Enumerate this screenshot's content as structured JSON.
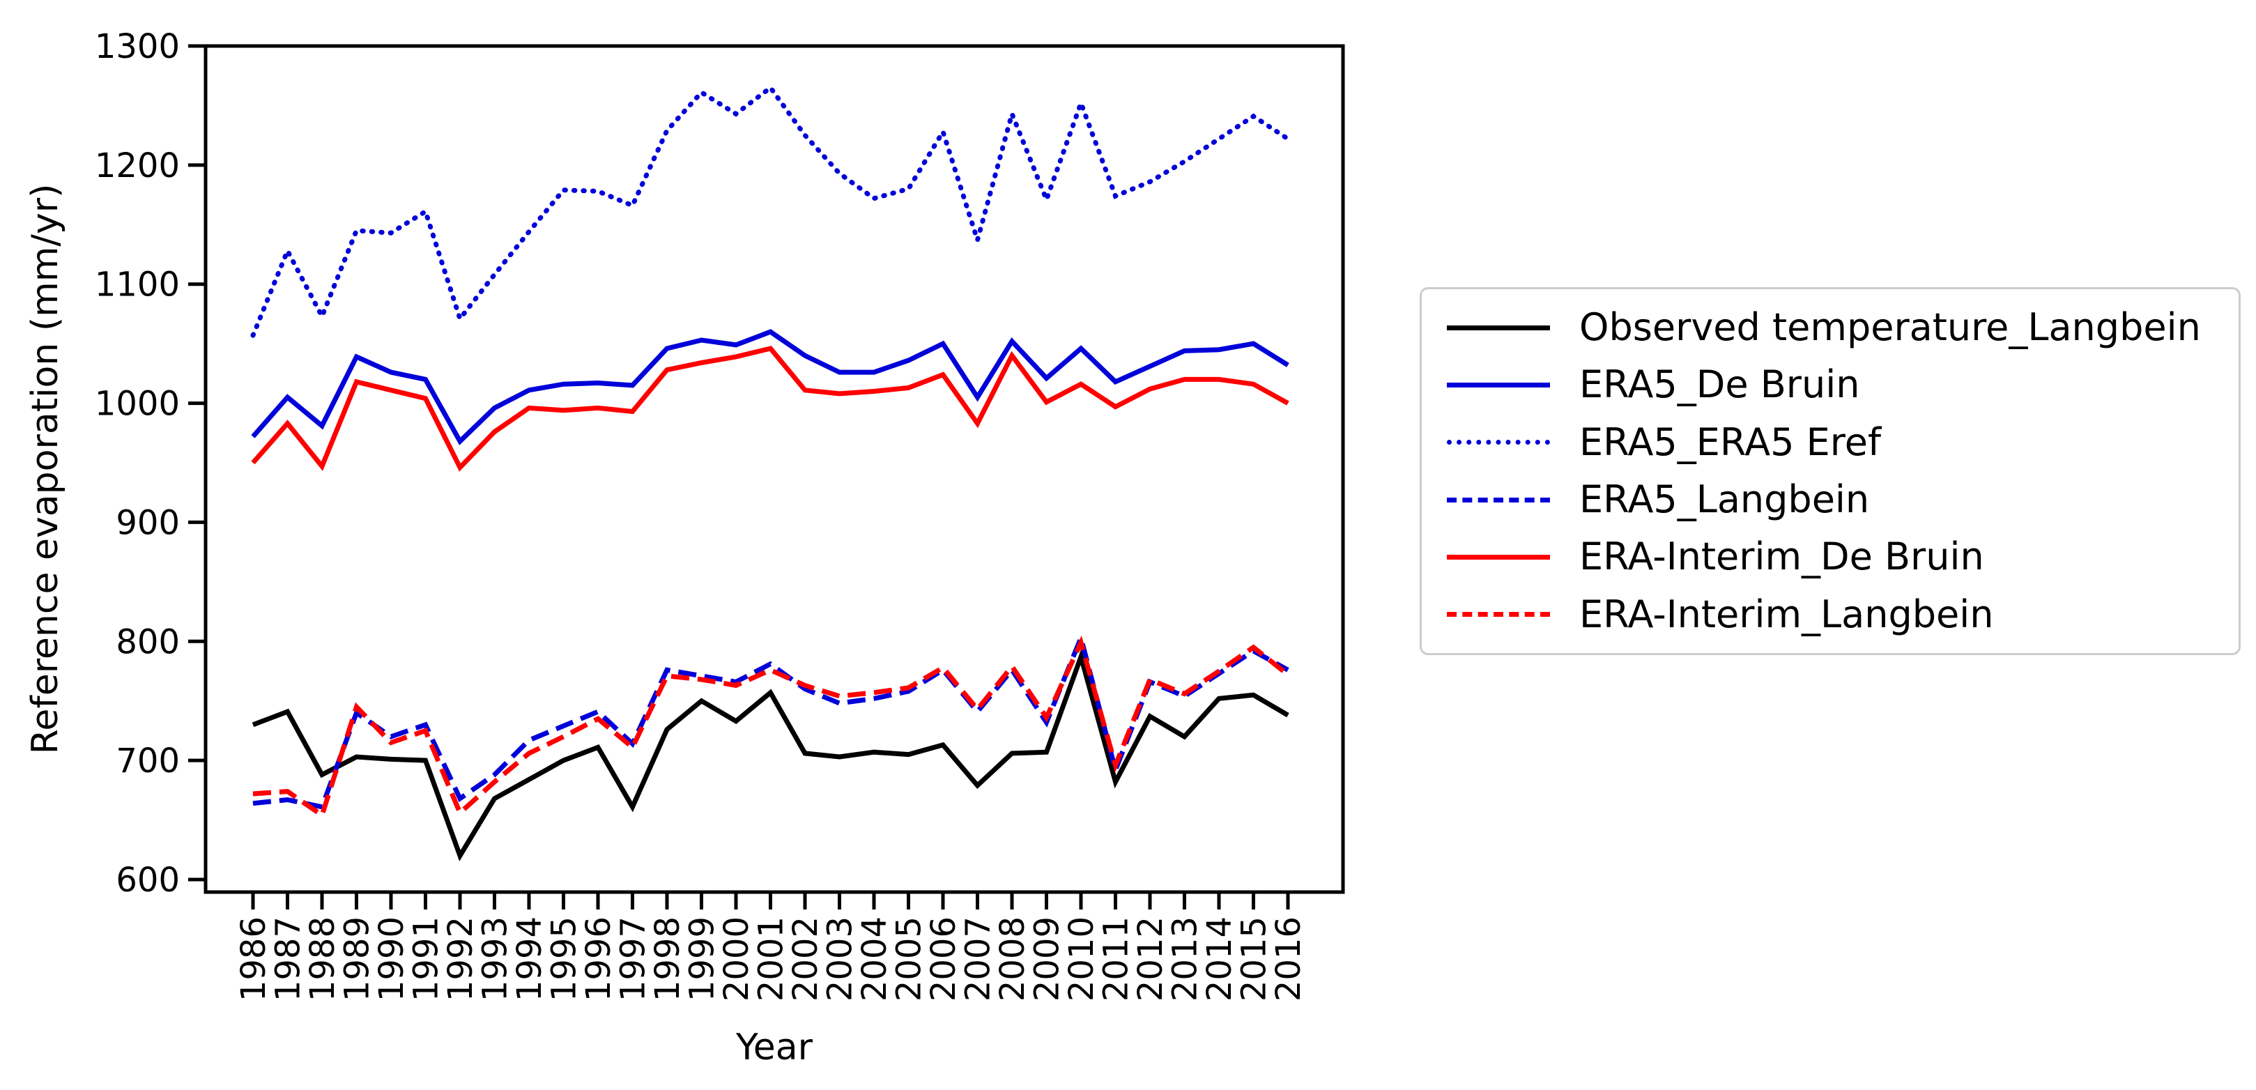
{
  "figure": {
    "background_color": "#ffffff",
    "frame_color": "#000000"
  },
  "axes": {
    "ylabel": "Reference evaporation (mm/yr)",
    "xlabel": "Year",
    "y_ticks": [
      600,
      700,
      800,
      900,
      1000,
      1100,
      1200,
      1300
    ],
    "x_ticks": [
      1986,
      1987,
      1988,
      1989,
      1990,
      1991,
      1992,
      1993,
      1994,
      1995,
      1996,
      1997,
      1998,
      1999,
      2000,
      2001,
      2002,
      2003,
      2004,
      2005,
      2006,
      2007,
      2008,
      2009,
      2010,
      2011,
      2012,
      2013,
      2014,
      2015,
      2016
    ],
    "grid": false
  },
  "legend": {
    "position": "right-outside",
    "items": [
      {
        "label": "Observed temperature_Langbein",
        "color": "#000000",
        "style": "solid"
      },
      {
        "label": "ERA5_De Bruin",
        "color": "#0000d9",
        "style": "solid"
      },
      {
        "label": "ERA5_ERA5 Eref",
        "color": "#0000d9",
        "style": "dotted"
      },
      {
        "label": "ERA5_Langbein",
        "color": "#0000d9",
        "style": "dashed"
      },
      {
        "label": "ERA-Interim_De Bruin",
        "color": "#ff0000",
        "style": "solid"
      },
      {
        "label": "ERA-Interim_Langbein",
        "color": "#ff0000",
        "style": "dashed"
      }
    ]
  },
  "chart_data": {
    "type": "line",
    "title": "",
    "xlabel": "Year",
    "ylabel": "Reference evaporation (mm/yr)",
    "xlim": [
      1984.6,
      2017.6
    ],
    "ylim": [
      589,
      1300
    ],
    "legend_position": "center right outside",
    "x": [
      1986,
      1987,
      1988,
      1989,
      1990,
      1991,
      1992,
      1993,
      1994,
      1995,
      1996,
      1997,
      1998,
      1999,
      2000,
      2001,
      2002,
      2003,
      2004,
      2005,
      2006,
      2007,
      2008,
      2009,
      2010,
      2011,
      2012,
      2013,
      2014,
      2015,
      2016
    ],
    "series": [
      {
        "name": "Observed temperature_Langbein",
        "color": "#000000",
        "line_style": "solid",
        "values": [
          730,
          741,
          688,
          703,
          701,
          700,
          620,
          668,
          684,
          700,
          711,
          661,
          726,
          750,
          733,
          757,
          706,
          703,
          707,
          705,
          713,
          679,
          706,
          707,
          787,
          682,
          737,
          720,
          752,
          755,
          738
        ]
      },
      {
        "name": "ERA5_De Bruin",
        "color": "#0000d9",
        "line_style": "solid",
        "values": [
          972,
          1005,
          981,
          1039,
          1026,
          1020,
          968,
          996,
          1011,
          1016,
          1017,
          1015,
          1046,
          1053,
          1049,
          1060,
          1040,
          1026,
          1026,
          1036,
          1050,
          1005,
          1052,
          1021,
          1046,
          1018,
          1031,
          1044,
          1045,
          1050,
          1032
        ]
      },
      {
        "name": "ERA5_ERA5 Eref",
        "color": "#0000d9",
        "line_style": "dotted",
        "values": [
          1057,
          1128,
          1073,
          1145,
          1143,
          1161,
          1071,
          1108,
          1144,
          1179,
          1178,
          1166,
          1229,
          1261,
          1243,
          1265,
          1225,
          1193,
          1172,
          1180,
          1228,
          1137,
          1243,
          1171,
          1252,
          1174,
          1186,
          1203,
          1222,
          1241,
          1222
        ]
      },
      {
        "name": "ERA5_Langbein",
        "color": "#0000d9",
        "line_style": "dashed",
        "values": [
          664,
          667,
          661,
          740,
          720,
          730,
          668,
          688,
          717,
          729,
          741,
          714,
          776,
          771,
          766,
          781,
          760,
          748,
          752,
          758,
          776,
          741,
          776,
          732,
          803,
          692,
          766,
          754,
          773,
          792,
          776
        ]
      },
      {
        "name": "ERA-Interim_De Bruin",
        "color": "#ff0000",
        "line_style": "solid",
        "values": [
          950,
          983,
          947,
          1018,
          1011,
          1004,
          946,
          976,
          996,
          994,
          996,
          993,
          1028,
          1034,
          1039,
          1046,
          1011,
          1008,
          1010,
          1013,
          1024,
          983,
          1040,
          1001,
          1016,
          997,
          1012,
          1020,
          1020,
          1016,
          1000
        ]
      },
      {
        "name": "ERA-Interim_Langbein",
        "color": "#ff0000",
        "line_style": "dashed",
        "values": [
          672,
          674,
          654,
          745,
          715,
          725,
          656,
          682,
          706,
          720,
          735,
          711,
          771,
          768,
          763,
          776,
          763,
          754,
          757,
          761,
          778,
          743,
          779,
          736,
          799,
          696,
          768,
          756,
          775,
          795,
          772
        ]
      }
    ]
  }
}
